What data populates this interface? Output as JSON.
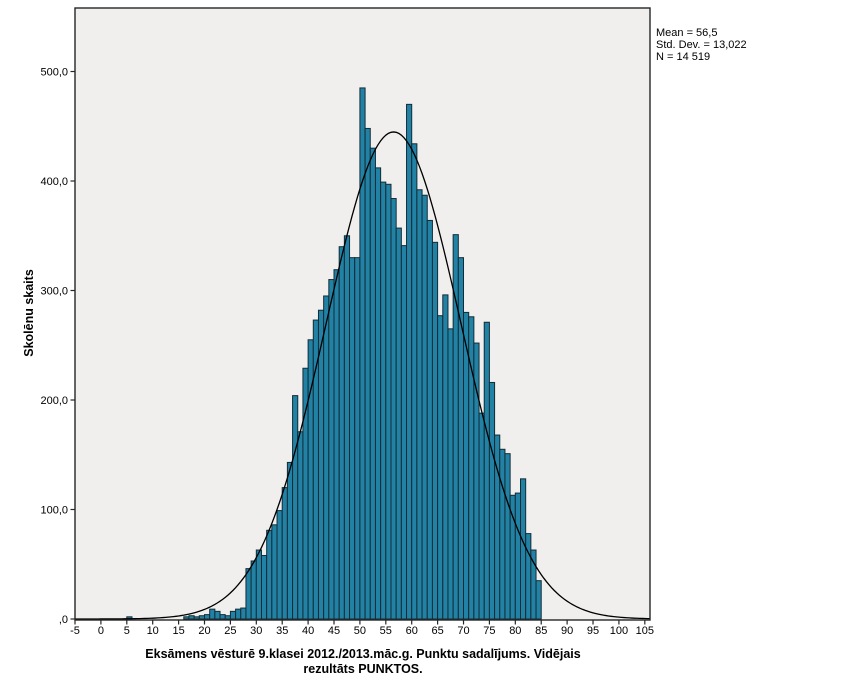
{
  "chart_data": {
    "type": "bar",
    "chart_kind": "histogram",
    "title": "",
    "ylabel": "Skolēnu skaits",
    "xlabel": "Eksāmens vēsturē 9.klasei 2012./2013.māc.g. Punktu sadalījums. Vidējais rezultāts PUNKTOS.",
    "xlabel_lines": [
      "Eksāmens vēsturē 9.klasei 2012./2013.māc.g. Punktu sadalījums. Vidējais",
      "rezultāts PUNKTOS."
    ],
    "stats_box": {
      "mean": "Mean = 56,5",
      "std_dev": "Std. Dev. = 13,022",
      "n": "N = 14 519"
    },
    "normal_curve": {
      "mean": 56.5,
      "sd": 13.022,
      "n": 14519,
      "bin_width": 1
    },
    "x_tick_labels": [
      "-5",
      "0",
      "5",
      "10",
      "15",
      "20",
      "25",
      "30",
      "35",
      "40",
      "45",
      "50",
      "55",
      "60",
      "65",
      "70",
      "75",
      "80",
      "85",
      "90",
      "95",
      "100",
      "105"
    ],
    "x_tick_values": [
      -5,
      0,
      5,
      10,
      15,
      20,
      25,
      30,
      35,
      40,
      45,
      50,
      55,
      60,
      65,
      70,
      75,
      80,
      85,
      90,
      95,
      100,
      105
    ],
    "y_tick_labels": [
      ",0",
      "100,0",
      "200,0",
      "300,0",
      "400,0",
      "500,0"
    ],
    "y_tick_values": [
      0,
      100,
      200,
      300,
      400,
      500
    ],
    "xlim": [
      -5,
      106
    ],
    "ylim": [
      0,
      558
    ],
    "grid": false,
    "legend": false,
    "bin_width": 1,
    "bins": [
      {
        "x": 5,
        "count": 2
      },
      {
        "x": 16,
        "count": 2
      },
      {
        "x": 17,
        "count": 3
      },
      {
        "x": 18,
        "count": 2
      },
      {
        "x": 19,
        "count": 3
      },
      {
        "x": 20,
        "count": 4
      },
      {
        "x": 21,
        "count": 9
      },
      {
        "x": 22,
        "count": 7
      },
      {
        "x": 23,
        "count": 4
      },
      {
        "x": 24,
        "count": 3
      },
      {
        "x": 25,
        "count": 7
      },
      {
        "x": 26,
        "count": 9
      },
      {
        "x": 27,
        "count": 10
      },
      {
        "x": 28,
        "count": 46
      },
      {
        "x": 29,
        "count": 53
      },
      {
        "x": 30,
        "count": 63
      },
      {
        "x": 31,
        "count": 58
      },
      {
        "x": 32,
        "count": 81
      },
      {
        "x": 33,
        "count": 86
      },
      {
        "x": 34,
        "count": 99
      },
      {
        "x": 35,
        "count": 120
      },
      {
        "x": 36,
        "count": 143
      },
      {
        "x": 37,
        "count": 204
      },
      {
        "x": 38,
        "count": 171
      },
      {
        "x": 39,
        "count": 229
      },
      {
        "x": 40,
        "count": 255
      },
      {
        "x": 41,
        "count": 273
      },
      {
        "x": 42,
        "count": 282
      },
      {
        "x": 43,
        "count": 295
      },
      {
        "x": 44,
        "count": 310
      },
      {
        "x": 45,
        "count": 319
      },
      {
        "x": 46,
        "count": 340
      },
      {
        "x": 47,
        "count": 350
      },
      {
        "x": 48,
        "count": 330
      },
      {
        "x": 49,
        "count": 330
      },
      {
        "x": 50,
        "count": 485
      },
      {
        "x": 51,
        "count": 448
      },
      {
        "x": 52,
        "count": 430
      },
      {
        "x": 53,
        "count": 412
      },
      {
        "x": 54,
        "count": 399
      },
      {
        "x": 55,
        "count": 397
      },
      {
        "x": 56,
        "count": 384
      },
      {
        "x": 57,
        "count": 357
      },
      {
        "x": 58,
        "count": 341
      },
      {
        "x": 59,
        "count": 470
      },
      {
        "x": 60,
        "count": 434
      },
      {
        "x": 61,
        "count": 392
      },
      {
        "x": 62,
        "count": 387
      },
      {
        "x": 63,
        "count": 364
      },
      {
        "x": 64,
        "count": 344
      },
      {
        "x": 65,
        "count": 277
      },
      {
        "x": 66,
        "count": 296
      },
      {
        "x": 67,
        "count": 265
      },
      {
        "x": 68,
        "count": 351
      },
      {
        "x": 69,
        "count": 330
      },
      {
        "x": 70,
        "count": 280
      },
      {
        "x": 71,
        "count": 276
      },
      {
        "x": 72,
        "count": 252
      },
      {
        "x": 73,
        "count": 188
      },
      {
        "x": 74,
        "count": 271
      },
      {
        "x": 75,
        "count": 216
      },
      {
        "x": 76,
        "count": 168
      },
      {
        "x": 77,
        "count": 155
      },
      {
        "x": 78,
        "count": 151
      },
      {
        "x": 79,
        "count": 113
      },
      {
        "x": 80,
        "count": 115
      },
      {
        "x": 81,
        "count": 128
      },
      {
        "x": 82,
        "count": 78
      },
      {
        "x": 83,
        "count": 63
      },
      {
        "x": 84,
        "count": 35
      }
    ],
    "colors": {
      "bar_fill": "#2282a5",
      "bar_stroke": "#132c36",
      "plot_bg": "#f0efed",
      "axis": "#262626",
      "curve": "#000000",
      "page_bg": "#ffffff"
    }
  }
}
